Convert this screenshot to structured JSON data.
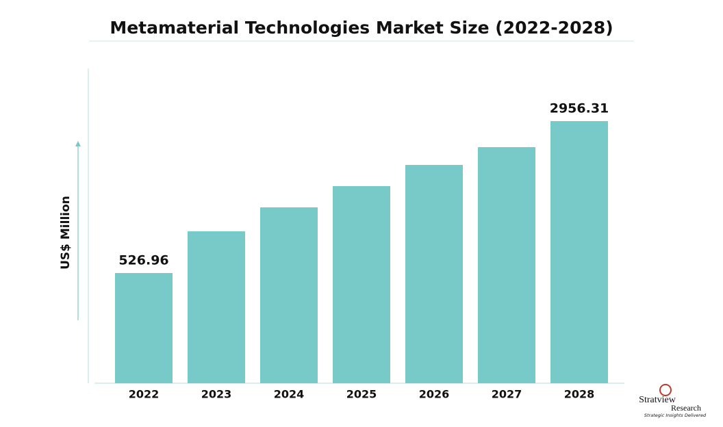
{
  "chart_data": {
    "type": "bar",
    "title": "Metamaterial Technologies Market Size (2022-2028)",
    "y_label": "US$ Million",
    "categories": [
      "2022",
      "2023",
      "2024",
      "2025",
      "2026",
      "2027",
      "2028"
    ],
    "values": [
      526.96,
      1194,
      1577,
      1917,
      2256,
      2540,
      2956.31
    ],
    "value_labels": [
      "526.96",
      null,
      null,
      null,
      null,
      null,
      "2956.31"
    ],
    "color": "#77cac8",
    "ylim": [
      -1235,
      3799
    ]
  },
  "logo": {
    "name_top": "Stratview",
    "name_bottom": "Research",
    "tagline": "Strategic Insights Delivered"
  }
}
